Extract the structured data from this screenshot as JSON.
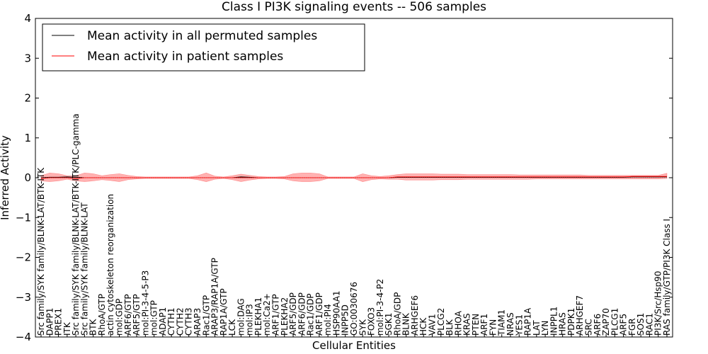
{
  "chart_data": {
    "type": "line",
    "title": "Class I PI3K signaling events -- 506 samples",
    "xlabel": "Cellular Entities",
    "ylabel": "Inferred Activity",
    "ylim": [
      -4,
      4
    ],
    "yticks": [
      -4,
      -3,
      -2,
      -1,
      0,
      1,
      2,
      3,
      4
    ],
    "ytick_labels": [
      "−4",
      "−3",
      "−2",
      "−1",
      "0",
      "1",
      "2",
      "3",
      "4"
    ],
    "grid": false,
    "legend": {
      "placement": "top-left"
    },
    "categories": [
      "Src family/SYK family/BLNK-LAT/BTK-ITK",
      "DAPP1",
      "PREX1",
      "ITK",
      "Src family/SYK family/BLNK-LAT/BTK-ITK/PLC-gamma",
      "Src family/SYK family/BLNK-LAT",
      "BTK",
      "RhoA/GTP",
      "actin cytoskeleton reorganization",
      "mol:GDP",
      "ARF6/GTP",
      "ARF5/GTP",
      "mol:PI-3-4-5-P3",
      "mol:GTP",
      "ADAP1",
      "CYTH1",
      "CYTH2",
      "CYTH3",
      "ARAP3",
      "Rac1/GTP",
      "ARAP3/RAP1A/GTP",
      "RAP1A/GTP",
      "LCK",
      "mol:DAG",
      "mol:IP3",
      "PLEKHA1",
      "mol:Ca2+",
      "ARF1/GTP",
      "PLEKHA2",
      "ARF5/GDP",
      "ARF6/GDP",
      "Rac1/GDP",
      "ARF1/GDP",
      "mol:PI4",
      "HSP90AA1",
      "INPP5D",
      "GO:0030676",
      "SYK",
      "FOXO3",
      "mol:PI-3-4-P2",
      "SGK1",
      "RhoA/GDP",
      "BLNK",
      "ARHGEF6",
      "HCK",
      "VAV1",
      "PLCG2",
      "BLK",
      "RHOA",
      "KRAS",
      "PTEN",
      "ARF1",
      "FYN",
      "TIAM1",
      "NRAS",
      "YES1",
      "RAP1A",
      "LAT",
      "LYN",
      "INPPL1",
      "HRAS",
      "PDPK1",
      "ARHGEF7",
      "SRC",
      "ARF6",
      "ZAP70",
      "PLCG1",
      "ARF5",
      "FGR",
      "SOS1",
      "RAC1",
      "PI3K/Src/Hsp90",
      "RAS family/GTP/PI3K Class I"
    ],
    "series": [
      {
        "name": "Mean activity in all permuted samples",
        "color": "#000000",
        "values": [
          0.0,
          0.01,
          0.01,
          0.02,
          0.01,
          0.0,
          0.0,
          0.0,
          0.0,
          0.0,
          0.0,
          0.0,
          0.0,
          0.0,
          0.0,
          0.0,
          0.0,
          0.0,
          0.0,
          0.0,
          0.0,
          0.0,
          0.0,
          0.02,
          0.01,
          0.0,
          0.0,
          0.0,
          0.0,
          0.0,
          0.0,
          0.0,
          0.0,
          0.0,
          0.0,
          0.0,
          0.0,
          0.0,
          0.0,
          0.0,
          0.0,
          0.01,
          0.01,
          0.01,
          0.01,
          0.01,
          0.01,
          0.01,
          0.01,
          0.01,
          0.01,
          0.01,
          0.01,
          0.01,
          0.01,
          0.01,
          0.01,
          0.01,
          0.01,
          0.01,
          0.01,
          0.01,
          0.01,
          0.01,
          0.01,
          0.01,
          0.01,
          0.01,
          0.02,
          0.02,
          0.02,
          0.02,
          0.02
        ]
      },
      {
        "name": "Mean activity in patient samples",
        "color": "#ff0000",
        "values": [
          -0.02,
          0.0,
          0.0,
          0.0,
          -0.02,
          0.0,
          0.0,
          0.0,
          0.0,
          0.0,
          0.0,
          0.0,
          0.0,
          0.0,
          0.0,
          0.0,
          0.0,
          0.0,
          0.0,
          0.0,
          0.0,
          0.0,
          0.0,
          0.0,
          0.0,
          0.0,
          0.0,
          0.0,
          0.0,
          0.0,
          0.0,
          0.0,
          0.0,
          0.0,
          0.0,
          0.0,
          0.0,
          0.0,
          0.0,
          0.0,
          0.0,
          0.02,
          0.02,
          0.02,
          0.02,
          0.02,
          0.02,
          0.02,
          0.02,
          0.02,
          0.02,
          0.02,
          0.02,
          0.02,
          0.02,
          0.02,
          0.02,
          0.02,
          0.02,
          0.02,
          0.02,
          0.02,
          0.02,
          0.02,
          0.02,
          0.02,
          0.02,
          0.02,
          0.03,
          0.03,
          0.03,
          0.03,
          0.03
        ],
        "band_upper": [
          0.05,
          0.12,
          0.1,
          0.05,
          0.05,
          0.12,
          0.1,
          0.05,
          0.08,
          0.1,
          0.06,
          0.03,
          0.02,
          0.02,
          0.02,
          0.02,
          0.02,
          0.02,
          0.05,
          0.12,
          0.04,
          0.02,
          0.05,
          0.09,
          0.06,
          0.03,
          0.02,
          0.02,
          0.03,
          0.1,
          0.12,
          0.12,
          0.1,
          0.02,
          0.02,
          0.02,
          0.02,
          0.1,
          0.05,
          0.03,
          0.05,
          0.08,
          0.1,
          0.1,
          0.1,
          0.1,
          0.09,
          0.09,
          0.09,
          0.08,
          0.08,
          0.08,
          0.08,
          0.08,
          0.08,
          0.07,
          0.07,
          0.07,
          0.07,
          0.07,
          0.07,
          0.07,
          0.07,
          0.06,
          0.06,
          0.06,
          0.06,
          0.06,
          0.06,
          0.06,
          0.06,
          0.06,
          0.11
        ],
        "band_lower": [
          -0.08,
          -0.1,
          -0.08,
          -0.04,
          -0.08,
          -0.1,
          -0.08,
          -0.05,
          -0.07,
          -0.1,
          -0.05,
          -0.03,
          -0.02,
          -0.02,
          -0.02,
          -0.02,
          -0.02,
          -0.02,
          -0.05,
          -0.1,
          -0.04,
          -0.02,
          -0.05,
          -0.1,
          -0.06,
          -0.03,
          -0.02,
          -0.02,
          -0.03,
          -0.08,
          -0.1,
          -0.1,
          -0.08,
          -0.02,
          -0.02,
          -0.02,
          -0.02,
          -0.1,
          -0.05,
          -0.03,
          -0.04,
          -0.04,
          -0.06,
          -0.06,
          -0.06,
          -0.06,
          -0.05,
          -0.05,
          -0.05,
          -0.04,
          -0.04,
          -0.04,
          -0.04,
          -0.04,
          -0.04,
          -0.04,
          -0.04,
          -0.03,
          -0.03,
          -0.03,
          -0.03,
          -0.03,
          -0.03,
          -0.03,
          -0.03,
          -0.03,
          -0.03,
          -0.03,
          -0.03,
          -0.03,
          -0.03,
          -0.03,
          -0.02
        ]
      }
    ]
  }
}
